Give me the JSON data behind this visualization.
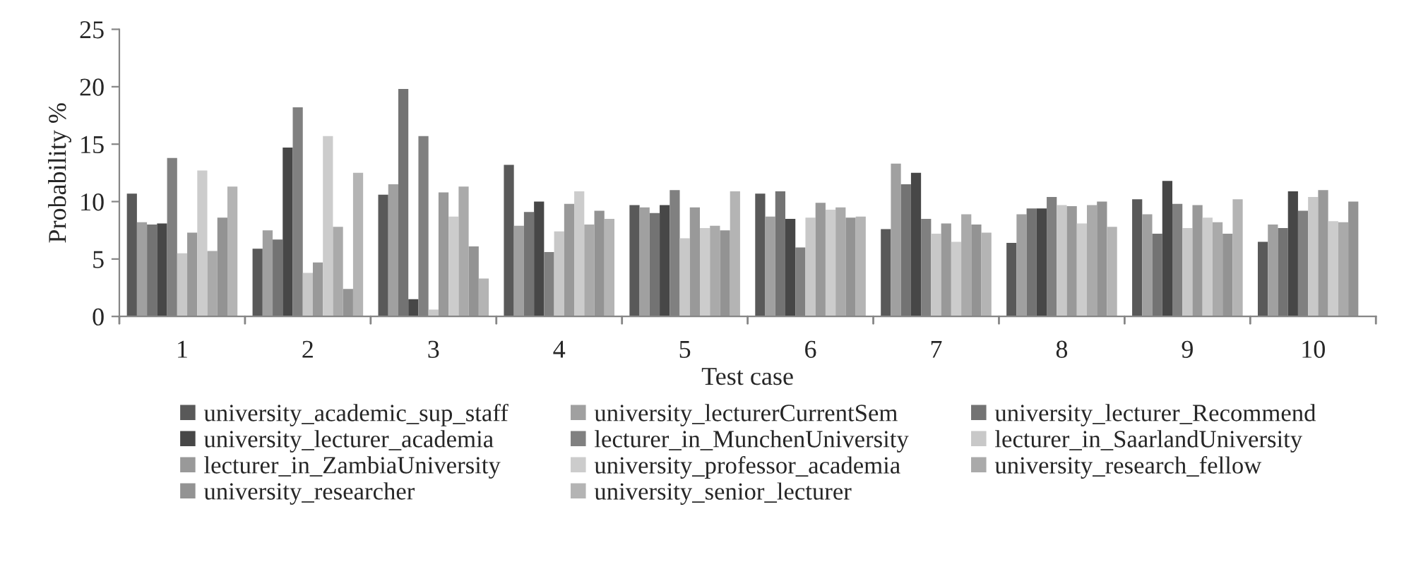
{
  "chart_data": {
    "type": "bar",
    "xlabel": "Test case",
    "ylabel": "Probability %",
    "categories": [
      "1",
      "2",
      "3",
      "4",
      "5",
      "6",
      "7",
      "8",
      "9",
      "10"
    ],
    "ylim": [
      0,
      25
    ],
    "yticks": [
      0,
      5,
      10,
      15,
      20,
      25
    ],
    "grid": false,
    "legend": "bottom",
    "series": [
      {
        "name": "university_academic_sup_staff",
        "color": "#595959",
        "values": [
          10.7,
          5.9,
          10.6,
          13.2,
          9.7,
          10.7,
          7.6,
          6.4,
          10.2,
          6.5
        ]
      },
      {
        "name": "university_lecturerCurrentSem",
        "color": "#a0a0a0",
        "values": [
          8.2,
          7.5,
          11.5,
          7.9,
          9.5,
          8.7,
          13.3,
          8.9,
          8.9,
          8.0
        ]
      },
      {
        "name": "university_lecturer_Recommend",
        "color": "#737373",
        "values": [
          8.0,
          6.7,
          19.8,
          9.1,
          9.0,
          10.9,
          11.5,
          9.4,
          7.2,
          7.7
        ]
      },
      {
        "name": "university_lecturer_academia",
        "color": "#474747",
        "values": [
          8.1,
          14.7,
          1.5,
          10.0,
          9.7,
          8.5,
          12.5,
          9.4,
          11.8,
          10.9
        ]
      },
      {
        "name": "lecturer_in_MunchenUniversity",
        "color": "#808080",
        "values": [
          13.8,
          18.2,
          15.7,
          5.6,
          11.0,
          6.0,
          8.5,
          10.4,
          9.8,
          9.2
        ]
      },
      {
        "name": "lecturer_in_SaarlandUniversity",
        "color": "#c8c8c8",
        "values": [
          5.5,
          3.8,
          0.6,
          7.4,
          6.8,
          8.6,
          7.2,
          9.7,
          7.7,
          10.4
        ]
      },
      {
        "name": "lecturer_in_ZambiaUniversity",
        "color": "#999999",
        "values": [
          7.3,
          4.7,
          10.8,
          9.8,
          9.5,
          9.9,
          8.1,
          9.6,
          9.7,
          11.0
        ]
      },
      {
        "name": "university_professor_academia",
        "color": "#cccccc",
        "values": [
          12.7,
          15.7,
          8.7,
          10.9,
          7.7,
          9.3,
          6.5,
          8.1,
          8.6,
          8.3
        ]
      },
      {
        "name": "university_research_fellow",
        "color": "#aaaaaa",
        "values": [
          5.7,
          7.8,
          11.3,
          8.0,
          7.9,
          9.5,
          8.9,
          9.7,
          8.2,
          8.2
        ]
      },
      {
        "name": "university_researcher",
        "color": "#939393",
        "values": [
          8.6,
          2.4,
          6.1,
          9.2,
          7.5,
          8.6,
          8.0,
          10.0,
          7.2,
          10.0
        ]
      },
      {
        "name": "university_senior_lecturer",
        "color": "#b4b4b4",
        "values": [
          11.3,
          12.5,
          3.3,
          8.5,
          10.9,
          8.7,
          7.3,
          7.8,
          10.2,
          null
        ]
      }
    ]
  }
}
